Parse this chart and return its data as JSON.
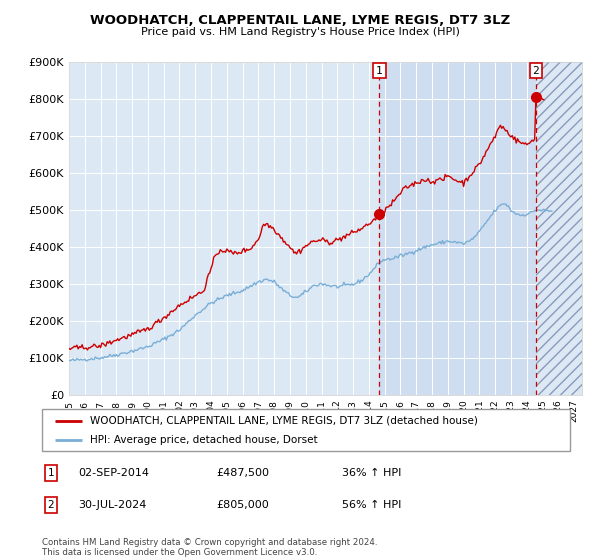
{
  "title": "WOODHATCH, CLAPPENTAIL LANE, LYME REGIS, DT7 3LZ",
  "subtitle": "Price paid vs. HM Land Registry's House Price Index (HPI)",
  "ylim": [
    0,
    900000
  ],
  "xlim_start": 1995.0,
  "xlim_end": 2027.5,
  "ytick_values": [
    0,
    100000,
    200000,
    300000,
    400000,
    500000,
    600000,
    700000,
    800000,
    900000
  ],
  "line_red_color": "#cc0000",
  "line_blue_color": "#7aaed6",
  "fig_bg_color": "#ffffff",
  "plot_bg_color": "#dce9f5",
  "grid_color": "#ffffff",
  "sale1_x": 2014.67,
  "sale1_y": 487500,
  "sale1_label": "1",
  "sale2_x": 2024.58,
  "sale2_y": 805000,
  "sale2_label": "2",
  "vline_color": "#cc0000",
  "legend_red_label": "WOODHATCH, CLAPPENTAIL LANE, LYME REGIS, DT7 3LZ (detached house)",
  "legend_blue_label": "HPI: Average price, detached house, Dorset",
  "annotation1_date": "02-SEP-2014",
  "annotation1_price": "£487,500",
  "annotation1_hpi": "36% ↑ HPI",
  "annotation2_date": "30-JUL-2024",
  "annotation2_price": "£805,000",
  "annotation2_hpi": "56% ↑ HPI",
  "footnote": "Contains HM Land Registry data © Crown copyright and database right 2024.\nThis data is licensed under the Open Government Licence v3.0."
}
